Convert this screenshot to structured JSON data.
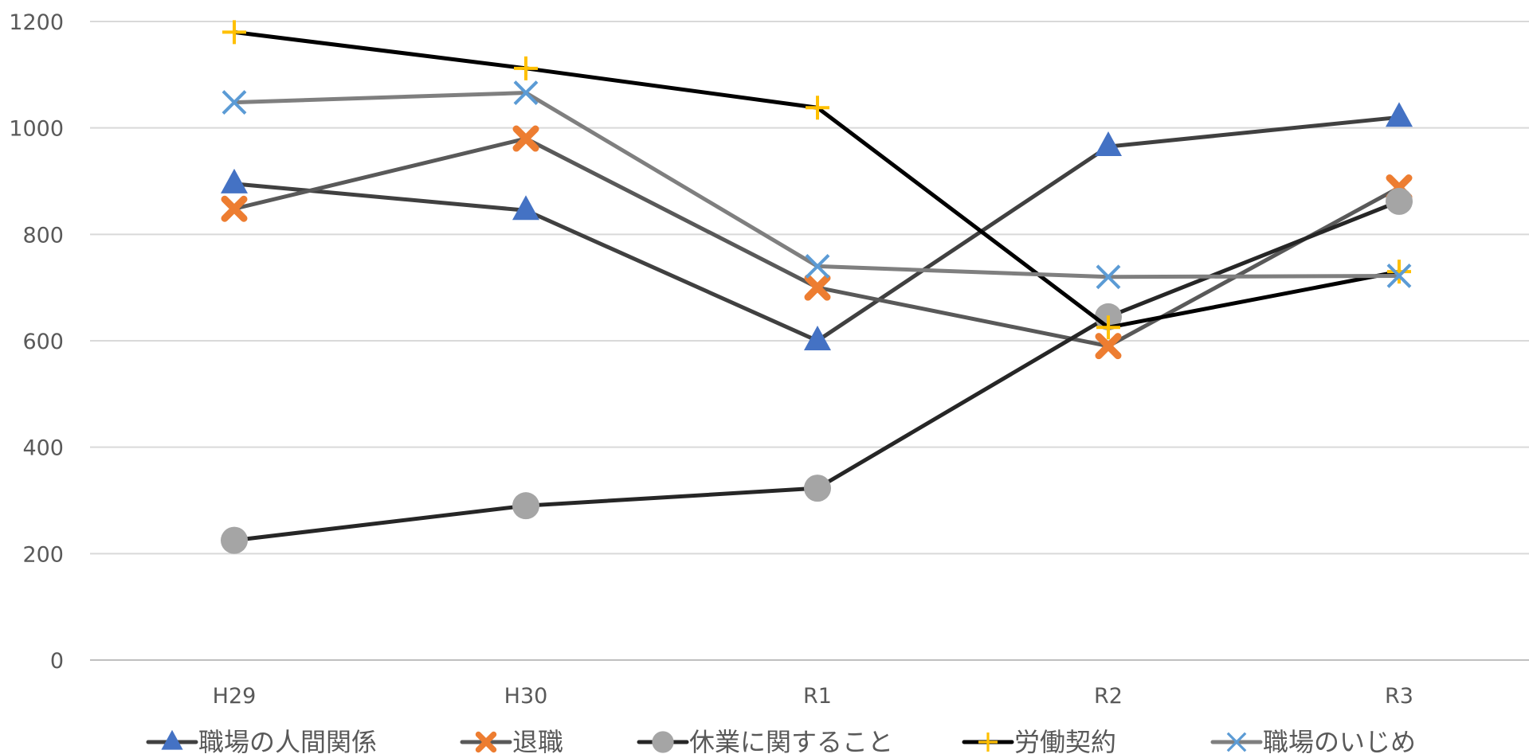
{
  "chart_data": {
    "type": "line",
    "title": "",
    "xlabel": "",
    "ylabel": "",
    "categories": [
      "H29",
      "H30",
      "R1",
      "R2",
      "R3"
    ],
    "ylim": [
      0,
      1200
    ],
    "yticks": [
      0,
      200,
      400,
      600,
      800,
      1000,
      1200
    ],
    "grid": true,
    "legend_position": "bottom",
    "series": [
      {
        "name": "職場の人間関係",
        "values": [
          895,
          845,
          600,
          965,
          1020
        ],
        "line_color": "#404040",
        "marker": "triangle",
        "marker_color": "#4472C4"
      },
      {
        "name": "退職",
        "values": [
          848,
          980,
          700,
          590,
          888
        ],
        "line_color": "#595959",
        "marker": "x-bold",
        "marker_color": "#ED7D31"
      },
      {
        "name": "休業に関すること",
        "values": [
          225,
          290,
          323,
          645,
          862
        ],
        "line_color": "#262626",
        "marker": "circle",
        "marker_color": "#A5A5A5"
      },
      {
        "name": "労働契約",
        "values": [
          1180,
          1112,
          1038,
          625,
          730
        ],
        "line_color": "#000000",
        "marker": "plus",
        "marker_color": "#FFC000"
      },
      {
        "name": "職場のいじめ",
        "values": [
          1048,
          1066,
          740,
          720,
          722
        ],
        "line_color": "#7F7F7F",
        "marker": "x",
        "marker_color": "#5B9BD5"
      }
    ]
  }
}
